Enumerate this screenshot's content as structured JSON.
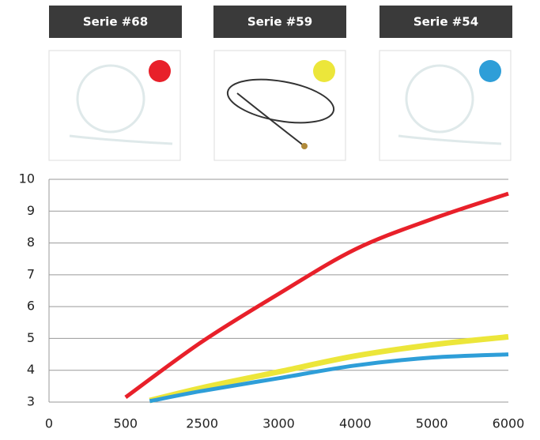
{
  "chart_data": {
    "type": "line",
    "series": [
      {
        "name": "Serie #68",
        "color": "#e8202a",
        "x": [
          500,
          2500,
          3000,
          4000,
          5000,
          6000
        ],
        "values": [
          3.15,
          4.9,
          6.4,
          7.8,
          8.75,
          9.55
        ]
      },
      {
        "name": "Serie #59",
        "color": "#ece63a",
        "x": [
          1130,
          2500,
          3000,
          4000,
          5000,
          6000
        ],
        "values": [
          3.05,
          3.45,
          3.95,
          4.45,
          4.8,
          5.05
        ]
      },
      {
        "name": "Serie #54",
        "color": "#2e9ed8",
        "x": [
          1130,
          2500,
          3000,
          4000,
          5000,
          6000
        ],
        "values": [
          3.03,
          3.35,
          3.75,
          4.15,
          4.4,
          4.5
        ]
      }
    ],
    "xticks": [
      0,
      500,
      2500,
      3000,
      4000,
      5000,
      6000
    ],
    "ylim": [
      3,
      10
    ],
    "yticks": [
      3,
      4,
      5,
      6,
      7,
      8,
      9,
      10
    ],
    "grid": true
  }
}
